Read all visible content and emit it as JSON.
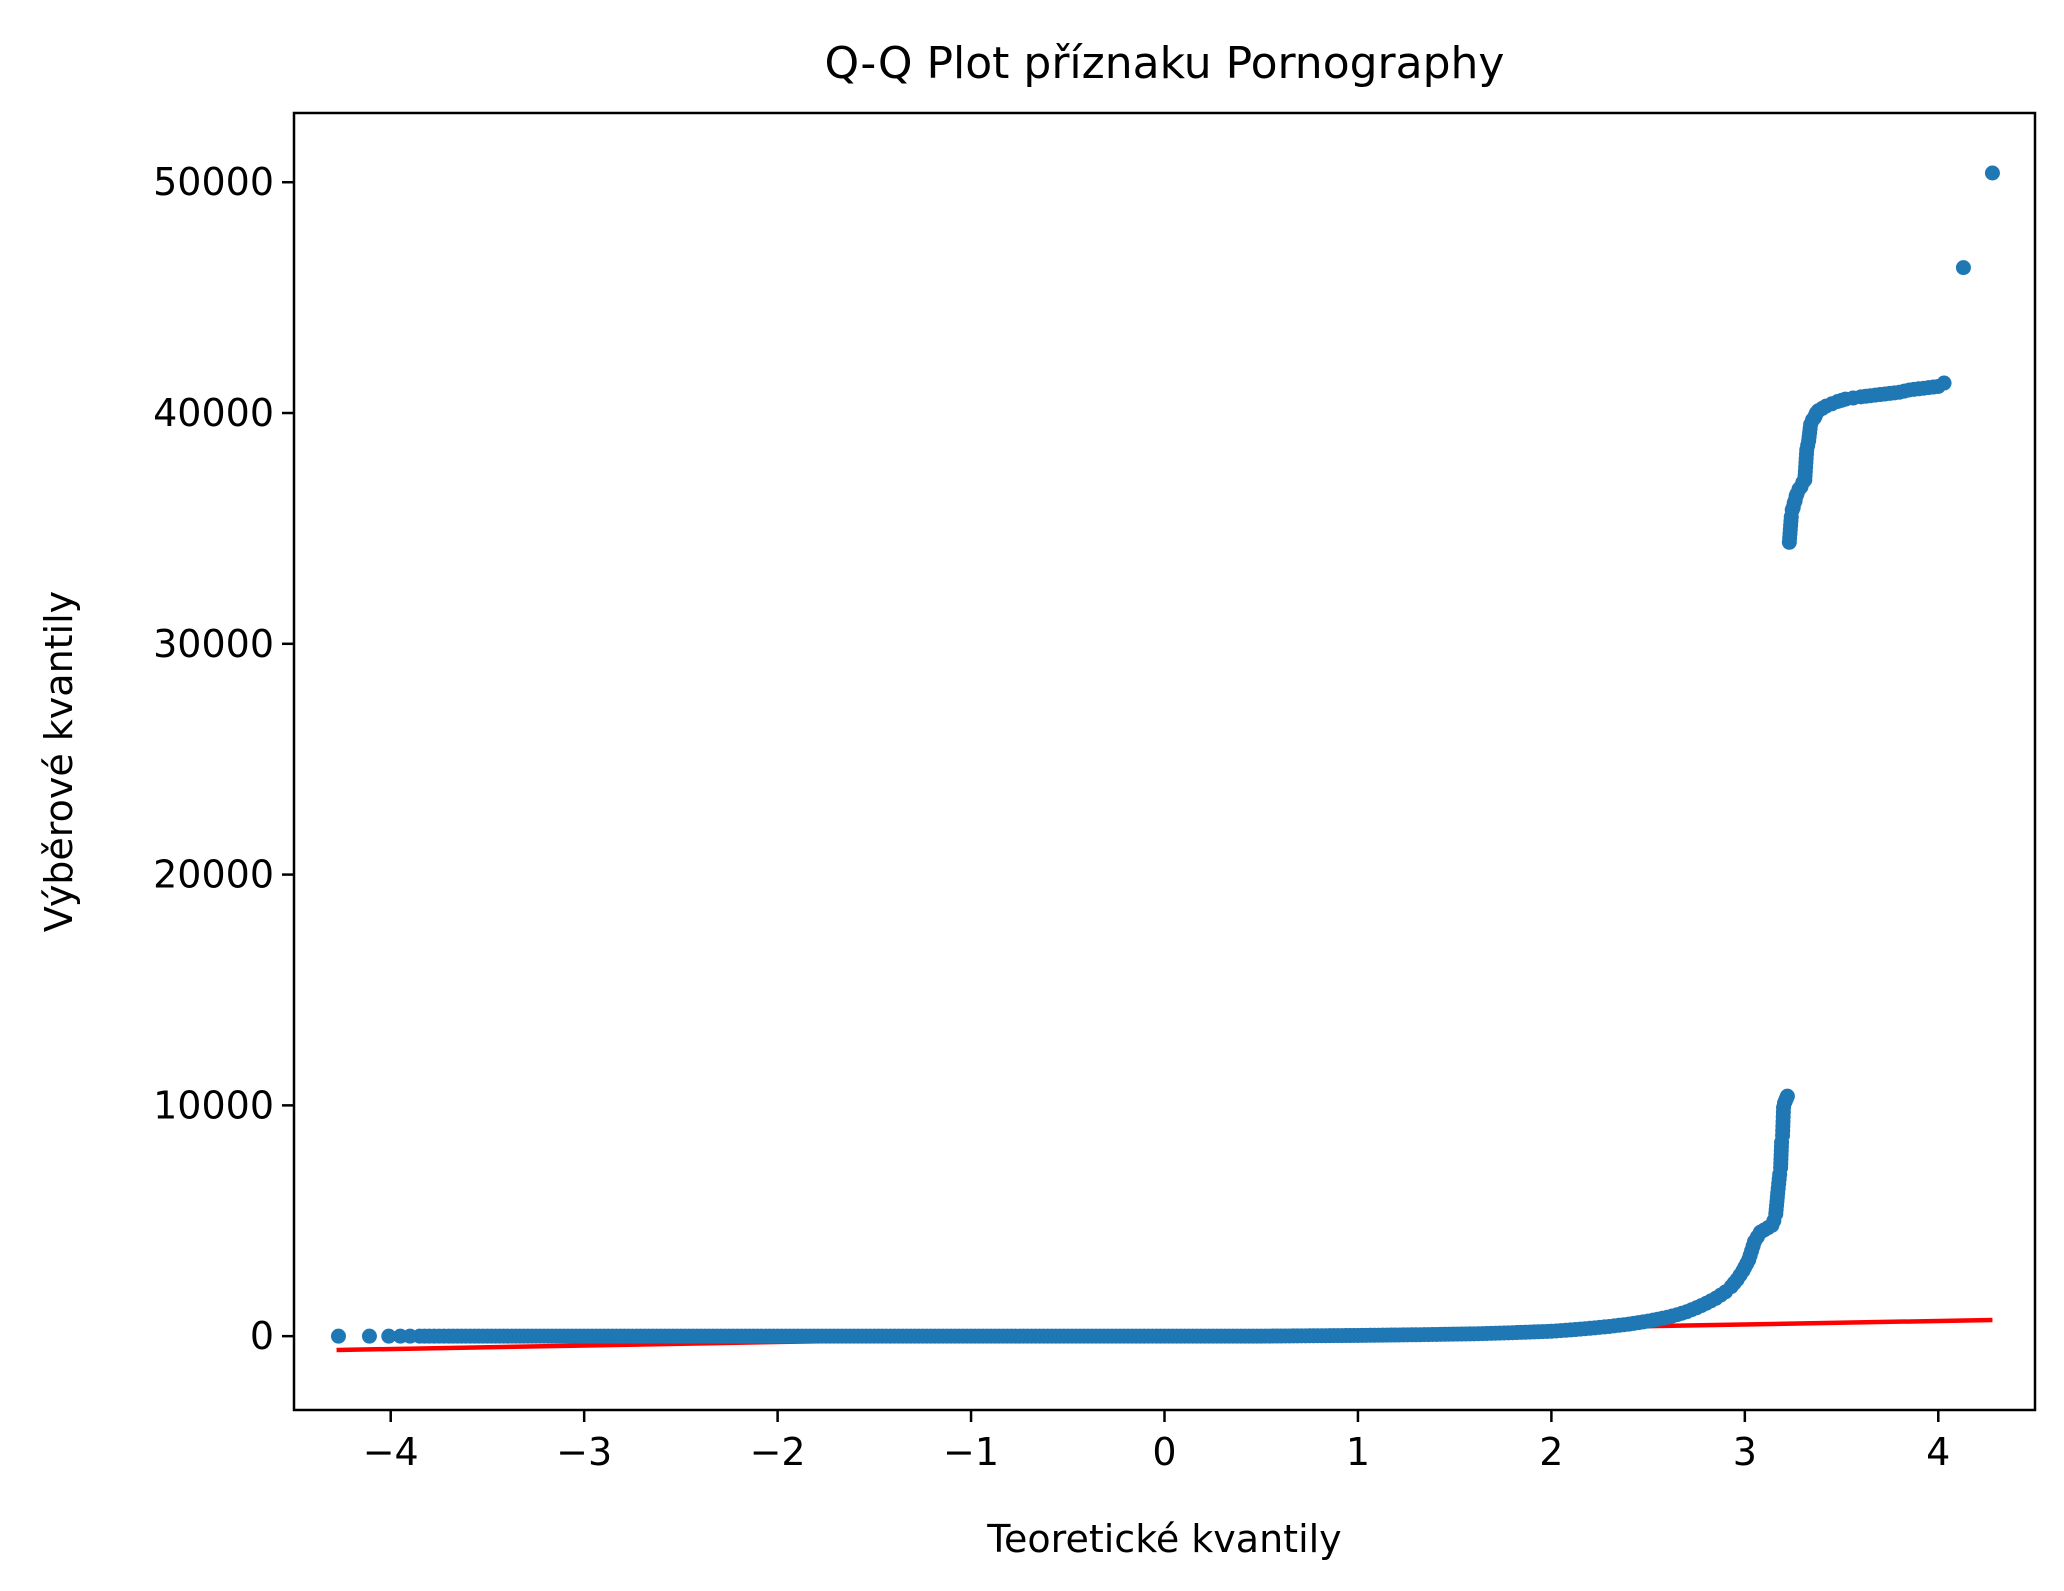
{
  "chart_data": {
    "type": "scatter",
    "title": "Q-Q Plot příznaku Pornography",
    "xlabel": "Teoretické kvantily",
    "ylabel": "Výběrové kvantily",
    "xlim": [
      -4.5,
      4.5
    ],
    "ylim": [
      -3200,
      53000
    ],
    "xticks": [
      -4,
      -3,
      -2,
      -1,
      0,
      1,
      2,
      3,
      4
    ],
    "xtick_labels": [
      "−4",
      "−3",
      "−2",
      "−1",
      "0",
      "1",
      "2",
      "3",
      "4"
    ],
    "yticks": [
      0,
      10000,
      20000,
      30000,
      40000,
      50000
    ],
    "ytick_labels": [
      "0",
      "10000",
      "20000",
      "30000",
      "40000",
      "50000"
    ],
    "grid": false,
    "legend": "none",
    "colors": {
      "points": "#1f77b4",
      "fit_line": "#ff0000"
    },
    "series": [
      {
        "kind": "points",
        "x": [
          -4.27,
          -4.11,
          -4.01,
          -3.95,
          -3.9,
          -3.85,
          -3.8,
          -3.7,
          -3.5,
          -3.0,
          -2.5,
          -2.0,
          -1.5,
          -1.0,
          -0.5,
          0.0,
          0.5,
          1.0,
          1.3,
          1.6,
          1.8,
          2.0,
          2.1,
          2.2,
          2.3,
          2.4,
          2.5,
          2.6,
          2.65,
          2.7,
          2.75,
          2.8,
          2.85,
          2.9,
          2.93,
          2.96,
          2.99,
          3.02,
          3.05,
          3.08,
          3.1,
          3.12,
          3.14,
          3.15,
          3.16,
          3.17,
          3.18,
          3.185,
          3.19,
          3.195,
          3.2,
          3.205,
          3.21,
          3.215,
          3.22,
          3.23,
          3.24,
          3.245,
          3.25,
          3.255,
          3.26,
          3.265,
          3.27,
          3.28,
          3.29,
          3.3,
          3.31,
          3.32,
          3.33,
          3.34,
          3.35,
          3.36,
          3.365,
          3.37,
          3.38,
          3.4,
          3.42,
          3.45,
          3.48,
          3.52,
          3.56,
          3.6,
          3.65,
          3.7,
          3.75,
          3.8,
          3.85,
          3.9,
          3.95,
          4.0,
          4.03,
          4.13,
          4.28
        ],
        "y": [
          0,
          0,
          0,
          0,
          0,
          0,
          0,
          0,
          0,
          0,
          0,
          0,
          0,
          0,
          0,
          0,
          0,
          30,
          60,
          100,
          150,
          210,
          270,
          340,
          420,
          520,
          650,
          820,
          930,
          1060,
          1230,
          1420,
          1640,
          1920,
          2150,
          2450,
          2830,
          3300,
          4100,
          4500,
          4600,
          4700,
          4800,
          5000,
          5300,
          6200,
          7000,
          7300,
          8400,
          8700,
          9900,
          10100,
          10200,
          10300,
          10400,
          34400,
          35500,
          35800,
          35900,
          36100,
          36200,
          36400,
          36500,
          36700,
          36800,
          37000,
          37100,
          38400,
          38800,
          39500,
          39700,
          39800,
          39900,
          40000,
          40100,
          40200,
          40300,
          40400,
          40500,
          40600,
          40650,
          40700,
          40750,
          40800,
          40850,
          40900,
          41000,
          41050,
          41100,
          41150,
          41300,
          46300,
          50400
        ]
      },
      {
        "kind": "line",
        "x": [
          -4.28,
          4.28
        ],
        "y": [
          -600,
          700
        ]
      }
    ]
  }
}
